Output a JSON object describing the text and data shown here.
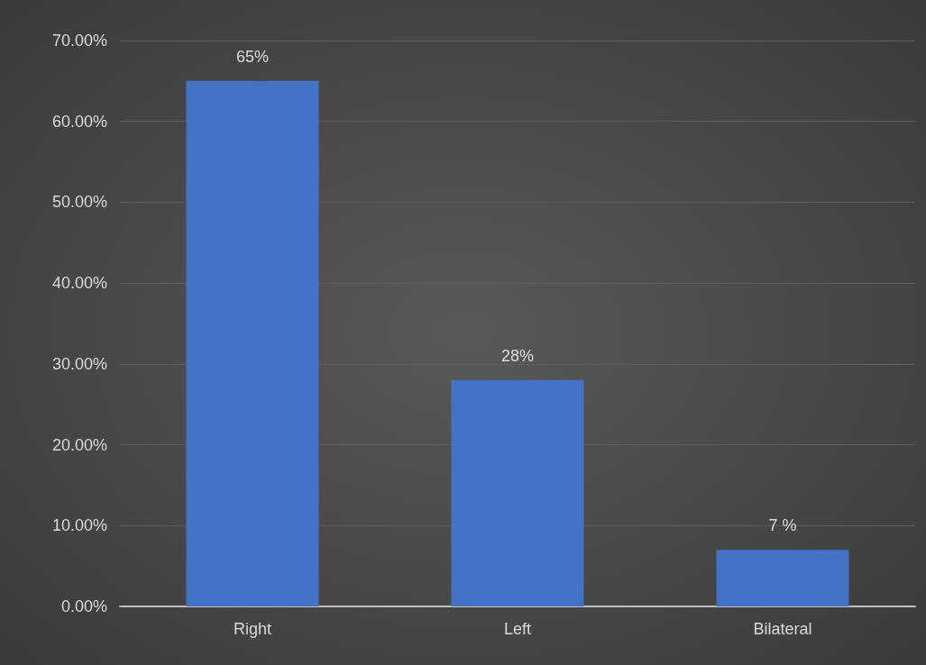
{
  "chart_data": {
    "type": "bar",
    "categories": [
      "Right",
      "Left",
      "Bilateral"
    ],
    "values": [
      65,
      28,
      7
    ],
    "value_labels": [
      "65%",
      "28%",
      "7 %"
    ],
    "color": "#4472c4",
    "ylim": [
      0,
      70
    ],
    "yticks": [
      {
        "value": 0,
        "label": "0.00%"
      },
      {
        "value": 10,
        "label": "10.00%"
      },
      {
        "value": 20,
        "label": "20.00%"
      },
      {
        "value": 30,
        "label": "30.00%"
      },
      {
        "value": 40,
        "label": "40.00%"
      },
      {
        "value": 50,
        "label": "50.00%"
      },
      {
        "value": 60,
        "label": "60.00%"
      },
      {
        "value": 70,
        "label": "70.00%"
      }
    ],
    "grid": "y"
  }
}
